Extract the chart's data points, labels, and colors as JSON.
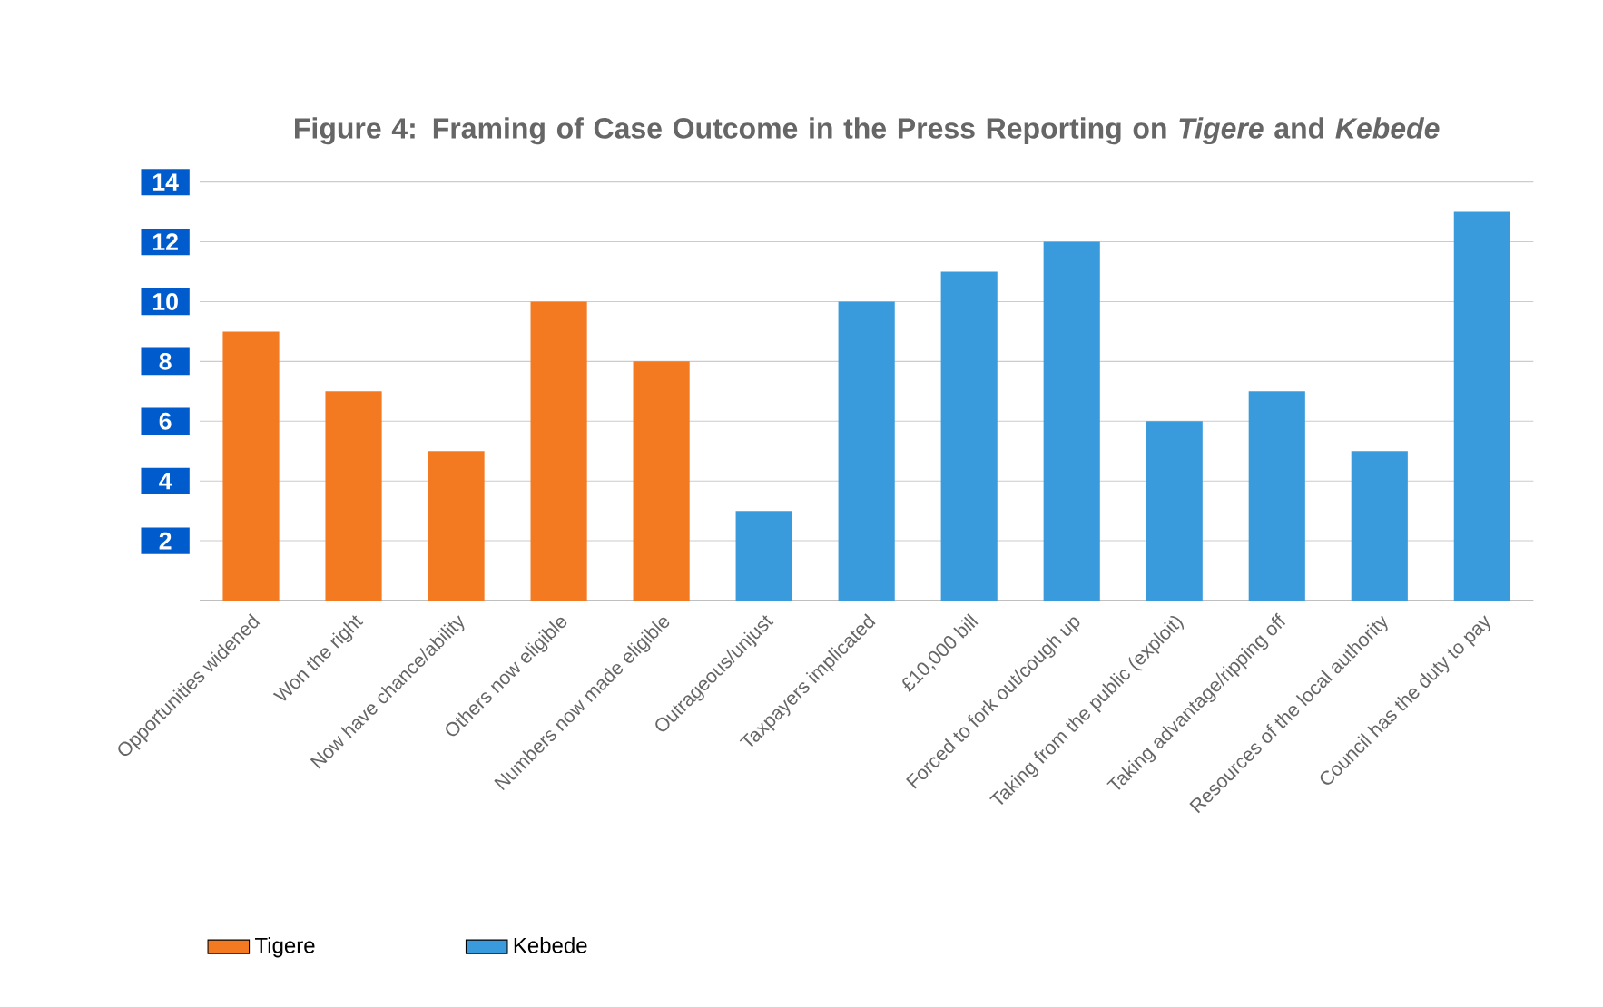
{
  "chart_data": {
    "type": "bar",
    "title": "Figure 4: Framing of Case Outcome in the Press Reporting on *Tigere*  and *Kebede*",
    "categories": [
      "Opportunities widened",
      "Won the right",
      "Now have chance/ability",
      "Others now eligible",
      "Numbers now made eligible",
      "Outrageous/unjust",
      "Taxpayers implicated",
      "£10,000 bill",
      "Forced to fork out/cough up",
      "Taking from the public (exploit)",
      "Taking advantage/ripping off",
      "Resources of the local authority",
      "Council has the duty to pay"
    ],
    "series": [
      {
        "name": "Tigere",
        "color": "#f47a22",
        "values": [
          9,
          7,
          5,
          10,
          8,
          null,
          null,
          null,
          null,
          null,
          null,
          null,
          null
        ]
      },
      {
        "name": "Kebede",
        "color": "#3a9bdc",
        "values": [
          null,
          null,
          null,
          null,
          null,
          3,
          10,
          11,
          12,
          6,
          7,
          5,
          13
        ]
      }
    ],
    "ylim": [
      0,
      14
    ],
    "yticks": [
      2,
      4,
      6,
      8,
      10,
      12,
      14
    ],
    "grid": "y",
    "legend": "bottom"
  }
}
